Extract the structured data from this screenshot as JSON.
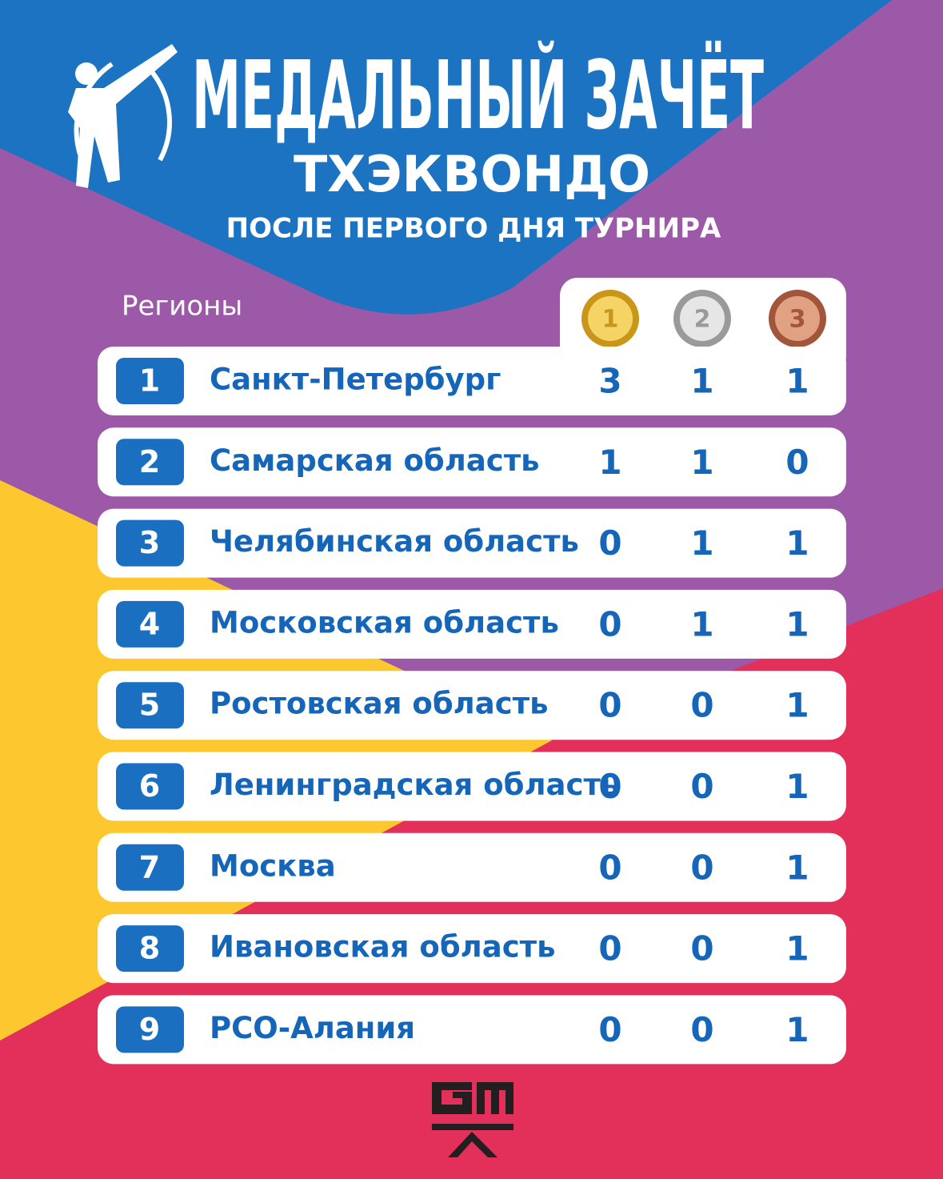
{
  "header": {
    "title": "МЕДАЛЬНЫЙ ЗАЧЁТ",
    "sport": "ТХЭКВОНДО",
    "subtitle": "ПОСЛЕ ПЕРВОГО ДНЯ ТУРНИРА"
  },
  "table": {
    "region_header": "Регионы",
    "medals": [
      "1",
      "2",
      "3"
    ],
    "rows": [
      {
        "rank": 1,
        "region": "Санкт-Петербург",
        "gold": 3,
        "silver": 1,
        "bronze": 1
      },
      {
        "rank": 2,
        "region": "Самарская область",
        "gold": 1,
        "silver": 1,
        "bronze": 0
      },
      {
        "rank": 3,
        "region": "Челябинская область",
        "gold": 0,
        "silver": 1,
        "bronze": 1
      },
      {
        "rank": 4,
        "region": "Московская область",
        "gold": 0,
        "silver": 1,
        "bronze": 1
      },
      {
        "rank": 5,
        "region": "Ростовская область",
        "gold": 0,
        "silver": 0,
        "bronze": 1
      },
      {
        "rank": 6,
        "region": "Ленинградская область",
        "gold": 0,
        "silver": 0,
        "bronze": 1
      },
      {
        "rank": 7,
        "region": "Москва",
        "gold": 0,
        "silver": 0,
        "bronze": 1
      },
      {
        "rank": 8,
        "region": "Ивановская область",
        "gold": 0,
        "silver": 0,
        "bronze": 1
      },
      {
        "rank": 9,
        "region": "РСО-Алания",
        "gold": 0,
        "silver": 0,
        "bronze": 1
      }
    ]
  }
}
